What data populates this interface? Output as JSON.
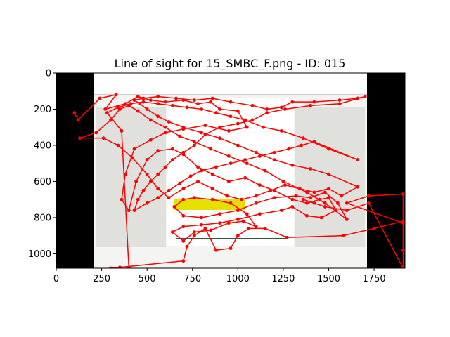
{
  "chart_data": {
    "type": "line",
    "title": "Line of sight for 15_SMBC_F.png - ID: 015",
    "xlabel": "",
    "ylabel": "",
    "xlim": [
      0,
      1920
    ],
    "ylim": [
      1080,
      0
    ],
    "x_ticks": [
      0,
      250,
      500,
      750,
      1000,
      1250,
      1500,
      1750
    ],
    "y_ticks": [
      0,
      200,
      400,
      600,
      800,
      1000
    ],
    "grid": false,
    "legend": "none",
    "background_image": {
      "description_key": "screenshot",
      "x_range": [
        210,
        1710
      ],
      "y_range": [
        0,
        1080
      ],
      "letterbox_color": "#000000"
    },
    "series": [
      {
        "color": "#ff0000",
        "marker": "circle",
        "points": [
          [
            100,
            220
          ],
          [
            120,
            260
          ],
          [
            240,
            140
          ],
          [
            330,
            120
          ],
          [
            270,
            200
          ],
          [
            380,
            170
          ],
          [
            450,
            130
          ],
          [
            520,
            150
          ],
          [
            600,
            160
          ],
          [
            700,
            150
          ],
          [
            780,
            170
          ],
          [
            850,
            160
          ],
          [
            900,
            200
          ],
          [
            1000,
            210
          ],
          [
            1050,
            300
          ],
          [
            950,
            320
          ],
          [
            820,
            290
          ],
          [
            700,
            310
          ],
          [
            600,
            330
          ],
          [
            520,
            370
          ],
          [
            430,
            420
          ],
          [
            380,
            560
          ],
          [
            360,
            700
          ],
          [
            400,
            760
          ],
          [
            440,
            600
          ],
          [
            500,
            480
          ],
          [
            560,
            430
          ],
          [
            640,
            420
          ],
          [
            700,
            450
          ],
          [
            780,
            520
          ],
          [
            860,
            560
          ],
          [
            950,
            600
          ],
          [
            1040,
            580
          ],
          [
            1120,
            620
          ],
          [
            1200,
            650
          ],
          [
            1300,
            700
          ],
          [
            1380,
            720
          ],
          [
            1450,
            700
          ],
          [
            1500,
            690
          ],
          [
            1540,
            760
          ],
          [
            1460,
            800
          ],
          [
            1380,
            790
          ],
          [
            1300,
            740
          ],
          [
            1240,
            760
          ],
          [
            1120,
            780
          ],
          [
            1000,
            810
          ],
          [
            900,
            830
          ],
          [
            800,
            840
          ],
          [
            700,
            850
          ],
          [
            640,
            880
          ],
          [
            700,
            930
          ],
          [
            760,
            880
          ],
          [
            850,
            870
          ],
          [
            950,
            830
          ],
          [
            1030,
            820
          ],
          [
            1100,
            850
          ],
          [
            1050,
            780
          ],
          [
            960,
            720
          ],
          [
            860,
            700
          ],
          [
            760,
            690
          ],
          [
            700,
            700
          ],
          [
            650,
            740
          ],
          [
            700,
            790
          ],
          [
            800,
            800
          ],
          [
            900,
            780
          ],
          [
            1000,
            760
          ],
          [
            1100,
            720
          ],
          [
            1200,
            690
          ],
          [
            1320,
            680
          ],
          [
            1400,
            690
          ],
          [
            1480,
            660
          ],
          [
            1550,
            720
          ],
          [
            1600,
            810
          ],
          [
            1480,
            720
          ],
          [
            1380,
            660
          ],
          [
            1250,
            600
          ],
          [
            1150,
            540
          ],
          [
            1050,
            500
          ],
          [
            950,
            460
          ],
          [
            850,
            420
          ],
          [
            760,
            380
          ],
          [
            680,
            350
          ],
          [
            600,
            300
          ],
          [
            520,
            260
          ],
          [
            450,
            210
          ],
          [
            400,
            180
          ],
          [
            350,
            200
          ],
          [
            300,
            260
          ],
          [
            220,
            330
          ],
          [
            130,
            360
          ],
          [
            260,
            360
          ],
          [
            340,
            400
          ],
          [
            420,
            470
          ],
          [
            500,
            560
          ],
          [
            560,
            640
          ],
          [
            620,
            690
          ],
          [
            700,
            640
          ],
          [
            780,
            600
          ],
          [
            860,
            640
          ],
          [
            940,
            680
          ],
          [
            1020,
            700
          ],
          [
            1100,
            680
          ],
          [
            1180,
            650
          ],
          [
            1260,
            620
          ],
          [
            1340,
            640
          ],
          [
            1420,
            660
          ],
          [
            1500,
            640
          ],
          [
            1570,
            680
          ],
          [
            1660,
            630
          ],
          [
            1500,
            560
          ],
          [
            1400,
            530
          ],
          [
            1300,
            510
          ],
          [
            1200,
            480
          ],
          [
            1100,
            440
          ],
          [
            1000,
            400
          ],
          [
            900,
            360
          ],
          [
            800,
            330
          ],
          [
            700,
            300
          ],
          [
            620,
            270
          ],
          [
            560,
            240
          ],
          [
            500,
            200
          ],
          [
            460,
            170
          ],
          [
            430,
            150
          ],
          [
            480,
            140
          ],
          [
            560,
            130
          ],
          [
            660,
            140
          ],
          [
            760,
            150
          ],
          [
            860,
            140
          ],
          [
            960,
            160
          ],
          [
            1080,
            180
          ],
          [
            1160,
            200
          ],
          [
            1240,
            190
          ],
          [
            1300,
            160
          ],
          [
            1420,
            160
          ],
          [
            1560,
            150
          ],
          [
            1660,
            140
          ],
          [
            1700,
            130
          ],
          [
            1560,
            170
          ],
          [
            1400,
            180
          ],
          [
            1260,
            200
          ],
          [
            1160,
            220
          ],
          [
            1080,
            260
          ],
          [
            1000,
            280
          ],
          [
            900,
            300
          ],
          [
            820,
            340
          ],
          [
            760,
            400
          ],
          [
            700,
            440
          ],
          [
            640,
            480
          ],
          [
            600,
            520
          ],
          [
            560,
            560
          ],
          [
            520,
            600
          ],
          [
            480,
            650
          ],
          [
            450,
            700
          ],
          [
            430,
            760
          ],
          [
            500,
            720
          ],
          [
            560,
            690
          ],
          [
            620,
            650
          ],
          [
            680,
            610
          ],
          [
            740,
            570
          ],
          [
            800,
            540
          ],
          [
            880,
            520
          ],
          [
            960,
            500
          ],
          [
            1040,
            480
          ],
          [
            1120,
            460
          ],
          [
            1200,
            440
          ],
          [
            1280,
            420
          ],
          [
            1350,
            400
          ],
          [
            1420,
            380
          ],
          [
            1660,
            480
          ],
          [
            1500,
            420
          ],
          [
            1360,
            360
          ],
          [
            1240,
            320
          ],
          [
            1140,
            300
          ],
          [
            1040,
            260
          ],
          [
            960,
            240
          ],
          [
            880,
            220
          ],
          [
            800,
            200
          ],
          [
            720,
            190
          ],
          [
            640,
            180
          ],
          [
            560,
            170
          ],
          [
            480,
            160
          ],
          [
            410,
            170
          ],
          [
            340,
            190
          ],
          [
            280,
            220
          ],
          [
            360,
            320
          ],
          [
            400,
            1080
          ],
          [
            300,
            1080
          ],
          [
            350,
            1075
          ],
          [
            700,
            1040
          ],
          [
            720,
            960
          ],
          [
            760,
            900
          ],
          [
            820,
            860
          ],
          [
            880,
            980
          ],
          [
            960,
            970
          ],
          [
            1000,
            900
          ],
          [
            1060,
            860
          ],
          [
            1150,
            860
          ],
          [
            1270,
            910
          ],
          [
            1580,
            900
          ],
          [
            1750,
            860
          ],
          [
            1910,
            820
          ],
          [
            1910,
            670
          ],
          [
            1720,
            680
          ],
          [
            1600,
            720
          ],
          [
            1910,
            830
          ],
          [
            1910,
            980
          ],
          [
            1910,
            1080
          ],
          [
            1720,
            720
          ],
          [
            1600,
            760
          ],
          [
            1480,
            740
          ],
          [
            1420,
            720
          ],
          [
            1360,
            700
          ]
        ]
      }
    ]
  }
}
